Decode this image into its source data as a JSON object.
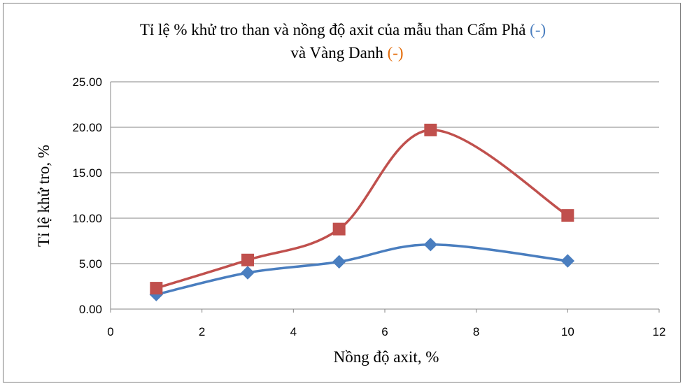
{
  "chart_data": {
    "type": "line",
    "title_line1": "Tỉ lệ % khử tro than và nồng độ axit của mẫu than Cẩm Phả ",
    "title_marker1": "(-)",
    "title_line2": "và Vàng Danh ",
    "title_marker2": "(-)",
    "xlabel": "Nồng độ axit, %",
    "ylabel": "Tỉ lệ khử tro, %",
    "xlim": [
      0,
      12
    ],
    "ylim": [
      0,
      25
    ],
    "x_ticks": [
      "0",
      "2",
      "4",
      "6",
      "8",
      "10",
      "12"
    ],
    "y_ticks": [
      "0.00",
      "5.00",
      "10.00",
      "15.00",
      "20.00",
      "25.00"
    ],
    "grid": "horizontal",
    "series": [
      {
        "color": "#4a7ebf",
        "marker": "diamond",
        "x": [
          1,
          3,
          5,
          7,
          10
        ],
        "y": [
          1.6,
          4.0,
          5.2,
          7.1,
          5.3
        ]
      },
      {
        "color": "#c0504d",
        "marker": "square",
        "x": [
          1,
          3,
          5,
          7,
          10
        ],
        "y": [
          2.3,
          5.4,
          8.8,
          19.7,
          10.3
        ]
      }
    ],
    "title_marker_colors": [
      "#4a7ebf",
      "#e46c0a"
    ]
  }
}
